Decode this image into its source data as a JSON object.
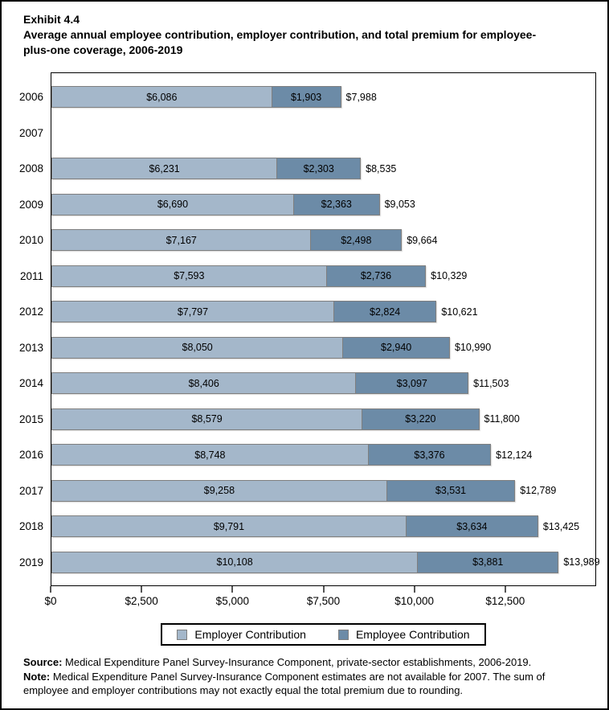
{
  "title": "Exhibit 4.4",
  "subtitle": "Average annual employee contribution, employer contribution, and total premium for employee-plus-one coverage, 2006-2019",
  "footer": {
    "source_label": "Source:",
    "source_text": " Medical Expenditure Panel Survey-Insurance Component, private-sector establishments, 2006-2019.",
    "note_label": "Note:",
    "note_text": " Medical Expenditure Panel Survey-Insurance Component estimates are not available for 2007. The sum of employee and employer contributions may not exactly equal the total premium due to rounding."
  },
  "chart_data": {
    "type": "bar",
    "orientation": "horizontal",
    "stacked": true,
    "grid": false,
    "legend_position": "bottom",
    "categories": [
      "2006",
      "2007",
      "2008",
      "2009",
      "2010",
      "2011",
      "2012",
      "2013",
      "2014",
      "2015",
      "2016",
      "2017",
      "2018",
      "2019"
    ],
    "series": [
      {
        "name": "Employer Contribution",
        "color": "#a4b7ca",
        "values": [
          6086,
          null,
          6231,
          6690,
          7167,
          7593,
          7797,
          8050,
          8406,
          8579,
          8748,
          9258,
          9791,
          10108
        ],
        "labels": [
          "$6,086",
          null,
          "$6,231",
          "$6,690",
          "$7,167",
          "$7,593",
          "$7,797",
          "$8,050",
          "$8,406",
          "$8,579",
          "$8,748",
          "$9,258",
          "$9,791",
          "$10,108"
        ]
      },
      {
        "name": "Employee Contribution",
        "color": "#6c8ba7",
        "values": [
          1903,
          null,
          2303,
          2363,
          2498,
          2736,
          2824,
          2940,
          3097,
          3220,
          3376,
          3531,
          3634,
          3881
        ],
        "labels": [
          "$1,903",
          null,
          "$2,303",
          "$2,363",
          "$2,498",
          "$2,736",
          "$2,824",
          "$2,940",
          "$3,097",
          "$3,220",
          "$3,376",
          "$3,531",
          "$3,634",
          "$3,881"
        ]
      }
    ],
    "totals": {
      "values": [
        7988,
        null,
        8535,
        9053,
        9664,
        10329,
        10621,
        10990,
        11503,
        11800,
        12124,
        12789,
        13425,
        13989
      ],
      "labels": [
        "$7,988",
        null,
        "$8,535",
        "$9,053",
        "$9,664",
        "$10,329",
        "$10,621",
        "$10,990",
        "$11,503",
        "$11,800",
        "$12,124",
        "$12,789",
        "$13,425",
        "$13,989"
      ]
    },
    "xlim": [
      0,
      15000
    ],
    "xticks": {
      "values": [
        0,
        2500,
        5000,
        7500,
        10000,
        12500
      ],
      "labels": [
        "$0",
        "$2,500",
        "$5,000",
        "$7,500",
        "$10,000",
        "$12,500"
      ]
    },
    "xlabel": "",
    "ylabel": ""
  }
}
